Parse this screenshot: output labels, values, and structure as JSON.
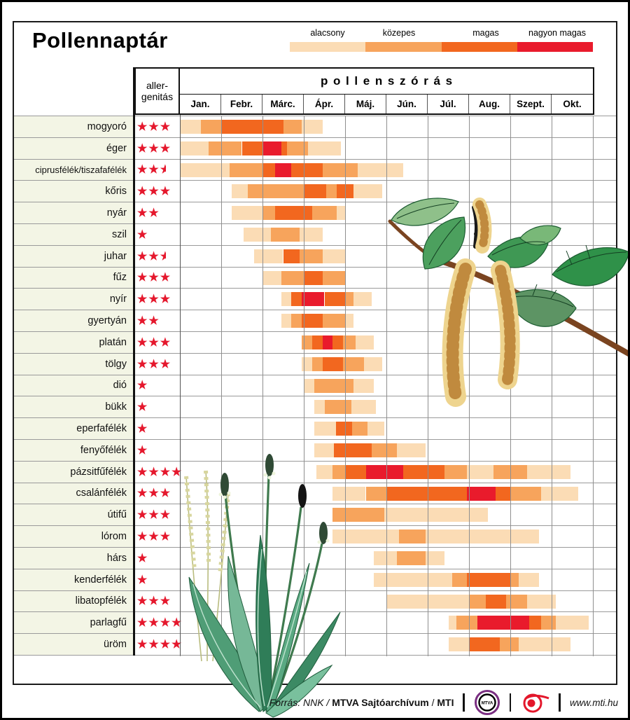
{
  "title": "Pollennaptár",
  "legend": {
    "levels": [
      {
        "code": "A",
        "label": "alacsony",
        "color": "#fbdcb5"
      },
      {
        "code": "K",
        "label": "közepes",
        "color": "#f7a45c"
      },
      {
        "code": "M",
        "label": "magas",
        "color": "#f2671f"
      },
      {
        "code": "N",
        "label": "nagyon magas",
        "color": "#e91b2c"
      }
    ]
  },
  "table": {
    "allergenicity_line1": "aller-",
    "allergenicity_line2": "genitás",
    "spread_header": "pollenszórás",
    "months": [
      "Jan.",
      "Febr.",
      "Márc.",
      "Ápr.",
      "Máj.",
      "Jún.",
      "Júl.",
      "Aug.",
      "Szept.",
      "Okt."
    ]
  },
  "chart_data": {
    "type": "heatmap",
    "title": "Pollennaptár",
    "subtitle": "pollenszórás",
    "x_axis": {
      "unit": "month",
      "labels": [
        "Jan.",
        "Febr.",
        "Márc.",
        "Ápr.",
        "Máj.",
        "Jún.",
        "Júl.",
        "Aug.",
        "Szept.",
        "Okt."
      ],
      "range": [
        0,
        10
      ]
    },
    "level_codes": {
      "A": "alacsony",
      "K": "közepes",
      "M": "magas",
      "N": "nagyon magas"
    },
    "star_color": "#e5182d",
    "rows": [
      {
        "name": "mogyoró",
        "stars": 3,
        "segments": [
          [
            "A",
            0,
            0.5
          ],
          [
            "K",
            0.5,
            1
          ],
          [
            "M",
            1,
            2.5
          ],
          [
            "K",
            2.5,
            2.95
          ],
          [
            "A",
            2.95,
            3.45
          ]
        ]
      },
      {
        "name": "éger",
        "stars": 3,
        "segments": [
          [
            "A",
            0,
            0.7
          ],
          [
            "K",
            0.7,
            1.5
          ],
          [
            "M",
            1.5,
            2.0
          ],
          [
            "N",
            2.0,
            2.45
          ],
          [
            "M",
            2.45,
            2.6
          ],
          [
            "K",
            2.6,
            3.1
          ],
          [
            "A",
            3.1,
            3.9
          ]
        ]
      },
      {
        "name": "ciprusfélék/tiszafafélék",
        "stars": 2.5,
        "segments": [
          [
            "A",
            0,
            1.2
          ],
          [
            "K",
            1.2,
            2.0
          ],
          [
            "M",
            2.0,
            2.3
          ],
          [
            "N",
            2.3,
            2.7
          ],
          [
            "M",
            2.7,
            3.45
          ],
          [
            "K",
            3.45,
            4.3
          ],
          [
            "A",
            4.3,
            5.4
          ]
        ]
      },
      {
        "name": "kőris",
        "stars": 3,
        "segments": [
          [
            "A",
            1.25,
            1.65
          ],
          [
            "K",
            1.65,
            3.0
          ],
          [
            "M",
            3.0,
            3.55
          ],
          [
            "K",
            3.55,
            3.8
          ],
          [
            "M",
            3.8,
            4.2
          ],
          [
            "A",
            4.2,
            4.9
          ]
        ]
      },
      {
        "name": "nyár",
        "stars": 2,
        "segments": [
          [
            "A",
            1.25,
            2.0
          ],
          [
            "K",
            2.0,
            2.3
          ],
          [
            "M",
            2.3,
            3.2
          ],
          [
            "K",
            3.2,
            3.8
          ],
          [
            "A",
            3.8,
            4.0
          ]
        ]
      },
      {
        "name": "szil",
        "stars": 1,
        "segments": [
          [
            "A",
            1.55,
            2.2
          ],
          [
            "K",
            2.2,
            2.9
          ],
          [
            "A",
            2.9,
            3.45
          ]
        ]
      },
      {
        "name": "juhar",
        "stars": 2.5,
        "segments": [
          [
            "A",
            1.8,
            2.5
          ],
          [
            "M",
            2.5,
            2.9
          ],
          [
            "K",
            2.9,
            3.45
          ],
          [
            "A",
            3.45,
            4.0
          ]
        ]
      },
      {
        "name": "fűz",
        "stars": 3,
        "segments": [
          [
            "A",
            2.0,
            2.45
          ],
          [
            "K",
            2.45,
            3.0
          ],
          [
            "M",
            3.0,
            3.45
          ],
          [
            "K",
            3.45,
            4.0
          ]
        ]
      },
      {
        "name": "nyír",
        "stars": 3,
        "segments": [
          [
            "A",
            2.45,
            2.7
          ],
          [
            "M",
            2.7,
            2.95
          ],
          [
            "N",
            2.95,
            3.5
          ],
          [
            "M",
            3.5,
            4.0
          ],
          [
            "K",
            4.0,
            4.2
          ],
          [
            "A",
            4.2,
            4.65
          ]
        ]
      },
      {
        "name": "gyertyán",
        "stars": 2,
        "segments": [
          [
            "A",
            2.45,
            2.7
          ],
          [
            "K",
            2.7,
            2.95
          ],
          [
            "M",
            2.95,
            3.45
          ],
          [
            "K",
            3.45,
            4.0
          ],
          [
            "A",
            4.0,
            4.2
          ]
        ]
      },
      {
        "name": "platán",
        "stars": 3,
        "segments": [
          [
            "K",
            2.95,
            3.2
          ],
          [
            "M",
            3.2,
            3.45
          ],
          [
            "N",
            3.45,
            3.7
          ],
          [
            "M",
            3.7,
            3.95
          ],
          [
            "K",
            3.95,
            4.25
          ],
          [
            "A",
            4.25,
            4.7
          ]
        ]
      },
      {
        "name": "tölgy",
        "stars": 3,
        "segments": [
          [
            "A",
            2.95,
            3.2
          ],
          [
            "K",
            3.2,
            3.45
          ],
          [
            "M",
            3.45,
            3.95
          ],
          [
            "K",
            3.95,
            4.45
          ],
          [
            "A",
            4.45,
            4.9
          ]
        ]
      },
      {
        "name": "dió",
        "stars": 1,
        "segments": [
          [
            "A",
            3.0,
            3.25
          ],
          [
            "K",
            3.25,
            4.2
          ],
          [
            "A",
            4.2,
            4.7
          ]
        ]
      },
      {
        "name": "bükk",
        "stars": 1,
        "segments": [
          [
            "A",
            3.25,
            3.5
          ],
          [
            "K",
            3.5,
            4.15
          ],
          [
            "A",
            4.15,
            4.75
          ]
        ]
      },
      {
        "name": "eperfafélék",
        "stars": 1,
        "segments": [
          [
            "A",
            3.25,
            3.78
          ],
          [
            "M",
            3.78,
            4.17
          ],
          [
            "K",
            4.17,
            4.55
          ],
          [
            "A",
            4.55,
            4.95
          ]
        ]
      },
      {
        "name": "fenyőfélék",
        "stars": 1,
        "segments": [
          [
            "A",
            3.25,
            3.73
          ],
          [
            "M",
            3.73,
            4.65
          ],
          [
            "K",
            4.65,
            5.25
          ],
          [
            "A",
            5.25,
            5.95
          ]
        ]
      },
      {
        "name": "pázsitfűfélék",
        "stars": 4,
        "segments": [
          [
            "A",
            3.3,
            3.7
          ],
          [
            "K",
            3.7,
            4.0
          ],
          [
            "M",
            4.0,
            4.5
          ],
          [
            "N",
            4.5,
            5.4
          ],
          [
            "M",
            5.4,
            6.4
          ],
          [
            "K",
            6.4,
            6.95
          ],
          [
            "A",
            6.95,
            7.6
          ],
          [
            "K",
            7.6,
            8.4
          ],
          [
            "A",
            8.4,
            9.45
          ]
        ]
      },
      {
        "name": "csalánfélék",
        "stars": 3,
        "segments": [
          [
            "A",
            3.7,
            4.5
          ],
          [
            "K",
            4.5,
            5.0
          ],
          [
            "M",
            5.0,
            6.95
          ],
          [
            "N",
            6.95,
            7.65
          ],
          [
            "M",
            7.65,
            8.0
          ],
          [
            "K",
            8.0,
            8.75
          ],
          [
            "A",
            8.75,
            9.65
          ]
        ]
      },
      {
        "name": "útifű",
        "stars": 3,
        "segments": [
          [
            "K",
            3.7,
            4.95
          ],
          [
            "A",
            4.95,
            7.45
          ]
        ]
      },
      {
        "name": "lórom",
        "stars": 3,
        "segments": [
          [
            "A",
            3.7,
            5.3
          ],
          [
            "K",
            5.3,
            5.95
          ],
          [
            "A",
            5.95,
            8.7
          ]
        ]
      },
      {
        "name": "hárs",
        "stars": 1,
        "segments": [
          [
            "A",
            4.7,
            5.25
          ],
          [
            "K",
            5.25,
            5.95
          ],
          [
            "A",
            5.95,
            6.4
          ]
        ]
      },
      {
        "name": "kenderfélék",
        "stars": 1,
        "segments": [
          [
            "A",
            4.7,
            6.6
          ],
          [
            "K",
            6.6,
            6.95
          ],
          [
            "M",
            6.95,
            8.0
          ],
          [
            "K",
            8.0,
            8.2
          ],
          [
            "A",
            8.2,
            8.7
          ]
        ]
      },
      {
        "name": "libatopfélék",
        "stars": 3,
        "segments": [
          [
            "A",
            5.0,
            7.0
          ],
          [
            "K",
            7.0,
            7.4
          ],
          [
            "M",
            7.4,
            7.9
          ],
          [
            "K",
            7.9,
            8.4
          ],
          [
            "A",
            8.4,
            9.1
          ]
        ]
      },
      {
        "name": "parlagfű",
        "stars": 4,
        "segments": [
          [
            "A",
            6.5,
            6.7
          ],
          [
            "K",
            6.7,
            7.2
          ],
          [
            "N",
            7.2,
            8.45
          ],
          [
            "M",
            8.45,
            8.75
          ],
          [
            "K",
            8.75,
            9.1
          ],
          [
            "A",
            9.1,
            9.9
          ]
        ]
      },
      {
        "name": "üröm",
        "stars": 4,
        "segments": [
          [
            "A",
            6.5,
            7.0
          ],
          [
            "M",
            7.0,
            7.75
          ],
          [
            "K",
            7.75,
            8.2
          ],
          [
            "A",
            8.2,
            9.45
          ]
        ]
      }
    ]
  },
  "footer": {
    "source_italic": "Forrás: NNK /",
    "source_bold": "MTVA Sajtóarchívum",
    "source_slash": "/",
    "source_bold2": "MTI",
    "mtva_logo_text": "MTVA",
    "website": "www.mti.hu"
  }
}
